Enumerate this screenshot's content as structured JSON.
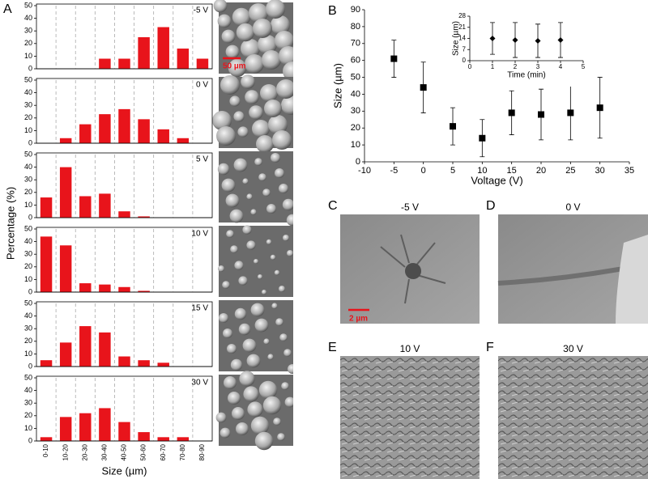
{
  "chart_data": [
    {
      "type": "bar",
      "panel": "A",
      "annotation": "-5 V",
      "color": "#e8141b",
      "values": [
        0,
        0,
        0,
        8,
        8,
        25,
        33,
        16,
        8
      ],
      "ylim": [
        0,
        50
      ],
      "yticks": [
        0,
        10,
        20,
        30,
        40,
        50
      ],
      "grid": true
    },
    {
      "type": "bar",
      "annotation": "0 V",
      "color": "#e8141b",
      "values": [
        0,
        4,
        15,
        23,
        27,
        19,
        11,
        4,
        0
      ],
      "ylim": [
        0,
        50
      ],
      "yticks": [
        0,
        10,
        20,
        30,
        40,
        50
      ],
      "grid": true
    },
    {
      "type": "bar",
      "annotation": "5 V",
      "color": "#e8141b",
      "values": [
        16,
        40,
        17,
        19,
        5,
        1,
        0,
        0,
        0
      ],
      "ylim": [
        0,
        50
      ],
      "yticks": [
        0,
        10,
        20,
        30,
        40,
        50
      ],
      "grid": true,
      "ylabel": "Percentage (%)"
    },
    {
      "type": "bar",
      "annotation": "10 V",
      "color": "#e8141b",
      "values": [
        44,
        37,
        7,
        6,
        4,
        1,
        0,
        0,
        0
      ],
      "ylim": [
        0,
        50
      ],
      "yticks": [
        0,
        10,
        20,
        30,
        40,
        50
      ],
      "grid": true
    },
    {
      "type": "bar",
      "annotation": "15 V",
      "color": "#e8141b",
      "values": [
        5,
        19,
        32,
        27,
        8,
        5,
        3,
        0,
        0
      ],
      "ylim": [
        0,
        50
      ],
      "yticks": [
        0,
        10,
        20,
        30,
        40,
        50
      ],
      "grid": true
    },
    {
      "type": "bar",
      "annotation": "30 V",
      "color": "#e8141b",
      "categories": [
        "0-10",
        "10-20",
        "20-30",
        "30-40",
        "40-50",
        "50-60",
        "60-70",
        "70-80",
        "80-90"
      ],
      "values": [
        3,
        19,
        22,
        26,
        15,
        7,
        3,
        3,
        0
      ],
      "ylim": [
        0,
        50
      ],
      "yticks": [
        0,
        10,
        20,
        30,
        40,
        50
      ],
      "grid": true,
      "xlabel": "Size (µm)"
    },
    {
      "type": "scatter",
      "panel": "B",
      "marker": "square",
      "color": "#000000",
      "x": [
        -5,
        0,
        5,
        10,
        15,
        20,
        25,
        30
      ],
      "values": [
        61,
        44,
        21,
        14,
        29,
        28,
        29,
        32
      ],
      "errors": [
        11,
        15,
        11,
        11,
        13,
        15,
        16,
        18
      ],
      "xlim": [
        -10,
        35
      ],
      "xticks": [
        -10,
        -5,
        0,
        5,
        10,
        15,
        20,
        25,
        30,
        35
      ],
      "ylim": [
        0,
        90
      ],
      "yticks": [
        0,
        10,
        20,
        30,
        40,
        50,
        60,
        70,
        80,
        90
      ],
      "xlabel": "Voltage (V)",
      "ylabel": "Size (µm)"
    },
    {
      "type": "scatter",
      "marker": "diamond",
      "color": "#000000",
      "x": [
        1,
        2,
        3,
        4
      ],
      "values": [
        14,
        13,
        12.5,
        13
      ],
      "errors": [
        10,
        11,
        10.5,
        11
      ],
      "xlim": [
        0,
        5
      ],
      "xticks": [
        0,
        1,
        2,
        3,
        4,
        5
      ],
      "ylim": [
        0,
        28
      ],
      "yticks": [
        0,
        7,
        14,
        21,
        28
      ],
      "xlabel": "Time (min)",
      "ylabel": "Size (µm)"
    }
  ],
  "sem_column": {
    "scale_bar": "50 µm"
  },
  "micrographs": {
    "scale_bar": "2 µm",
    "panels": [
      {
        "letter": "C",
        "caption": "-5 V"
      },
      {
        "letter": "D",
        "caption": "0 V"
      },
      {
        "letter": "E",
        "caption": "10 V"
      },
      {
        "letter": "F",
        "caption": "30 V"
      }
    ]
  }
}
